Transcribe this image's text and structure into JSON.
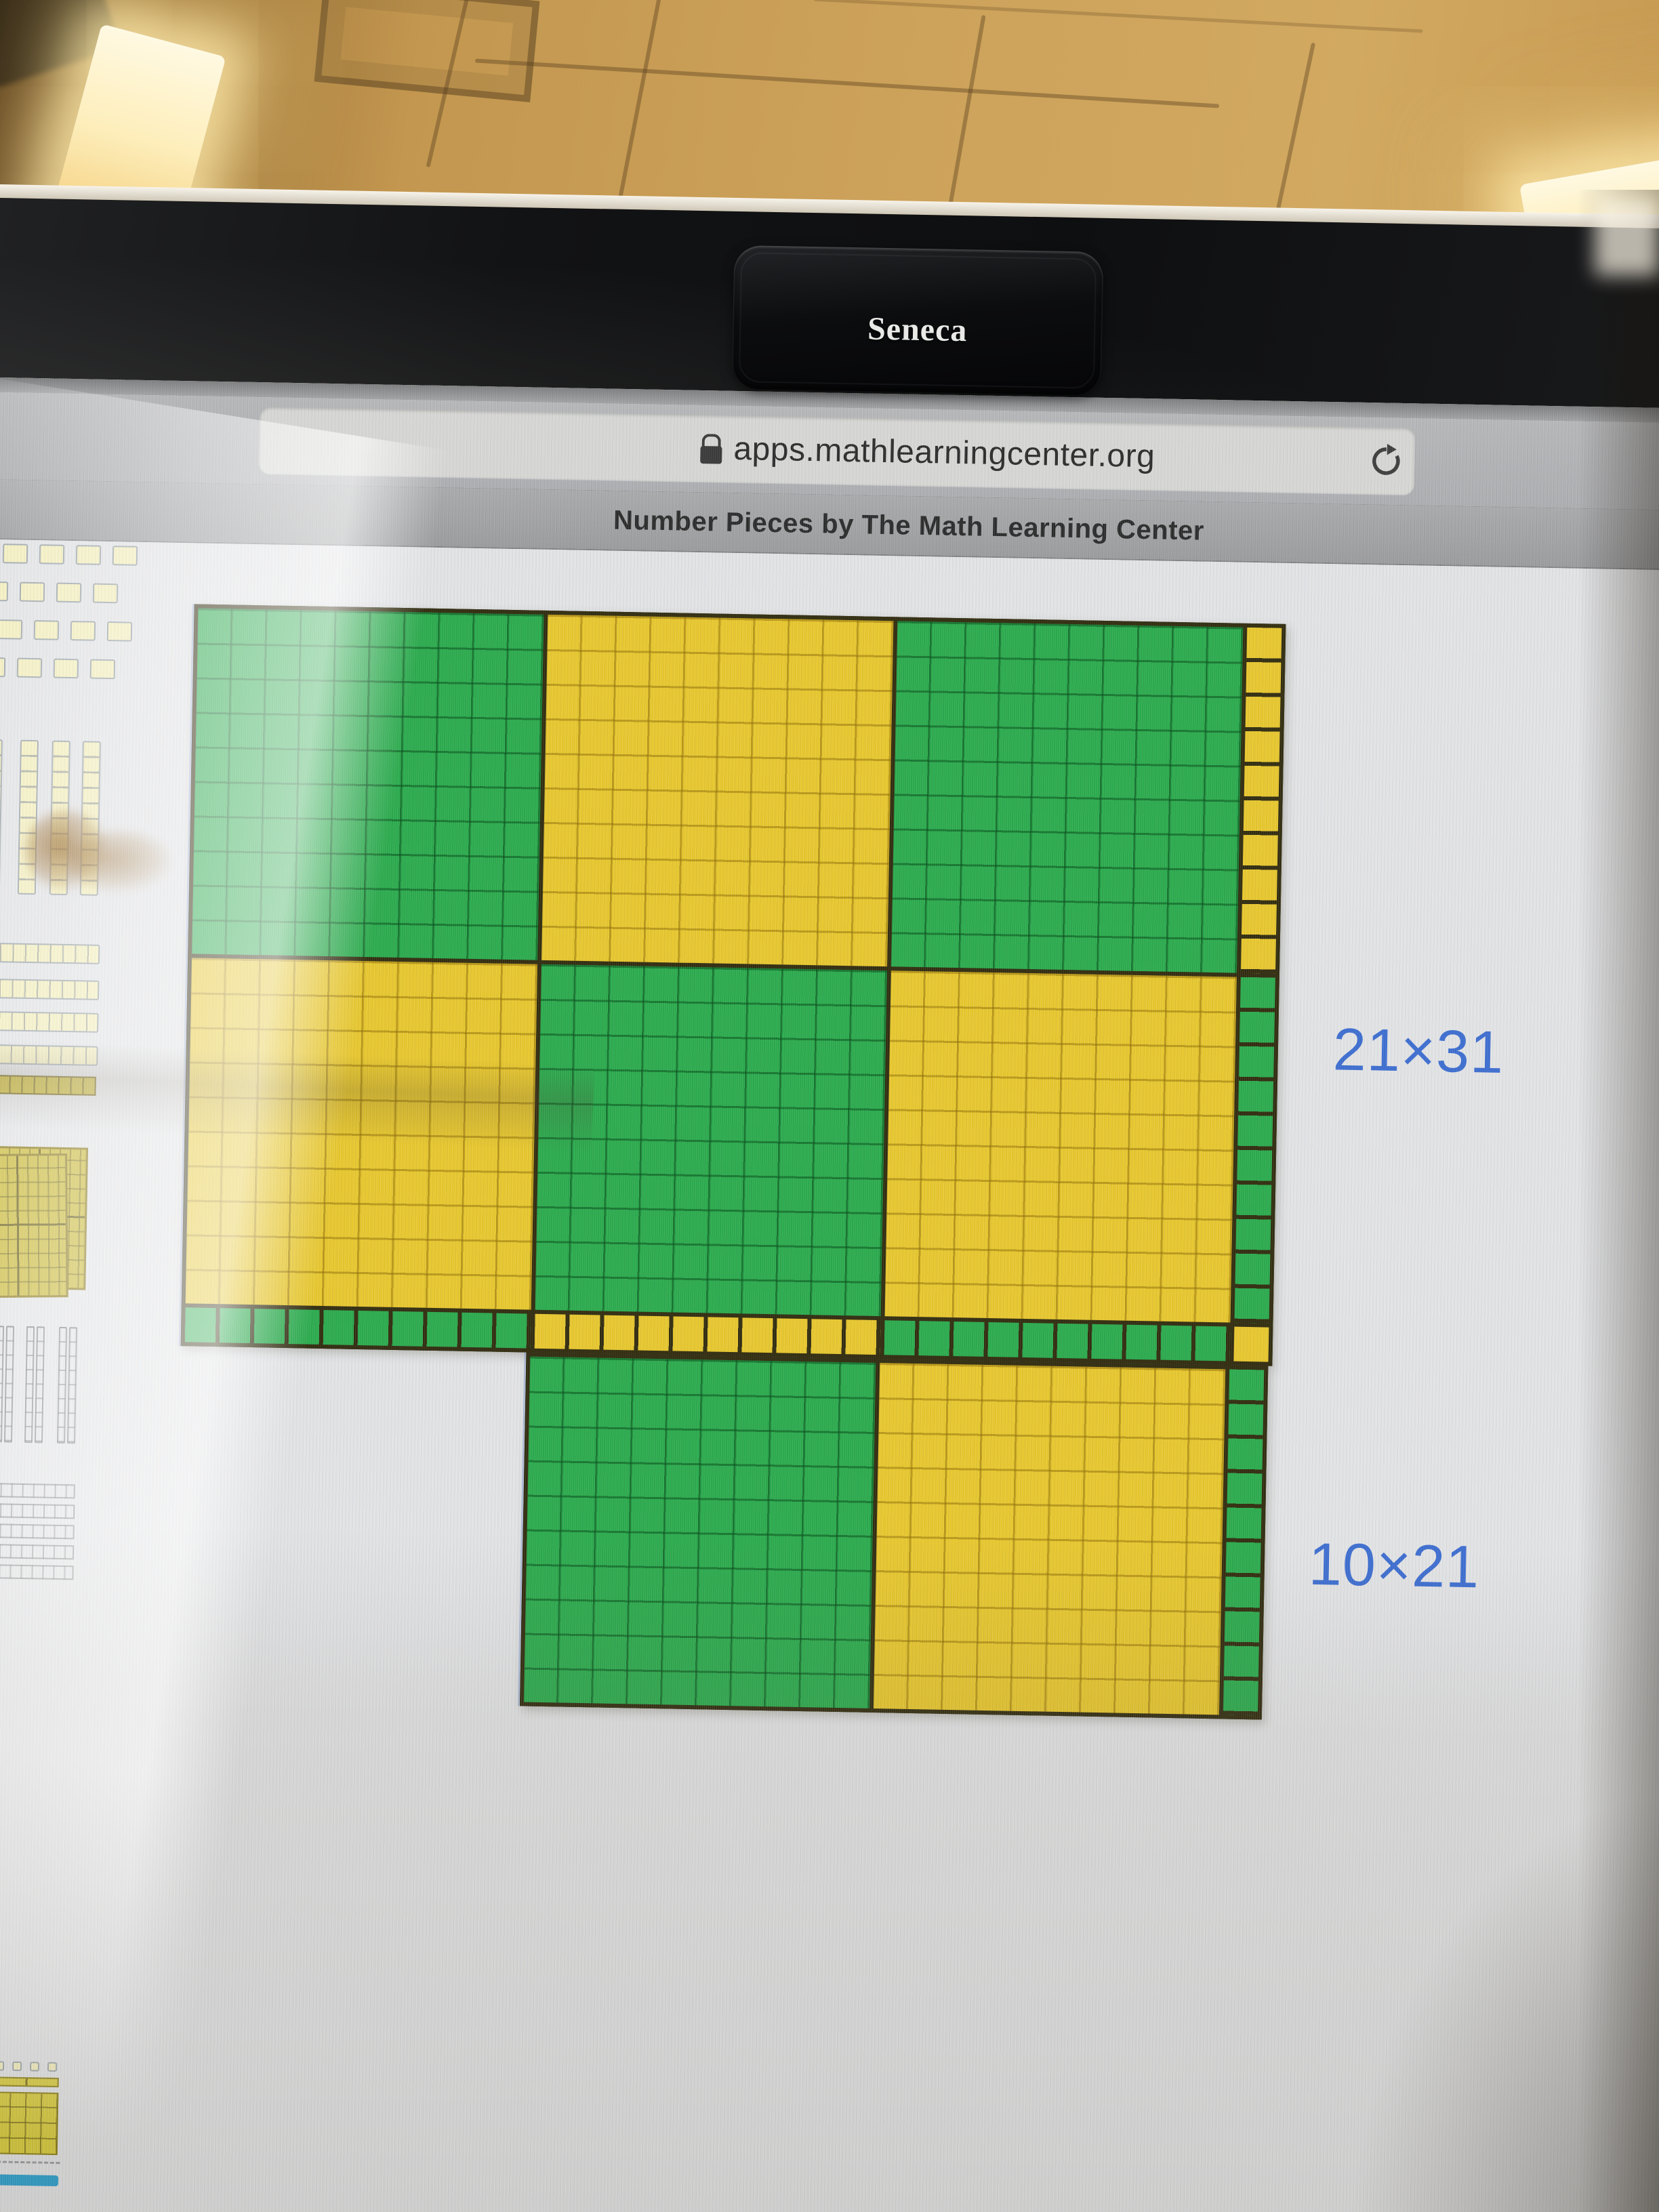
{
  "environment": {
    "webcam_cover_label": "Seneca"
  },
  "browser": {
    "address_bar": {
      "lock_icon": "padlock-icon",
      "url": "apps.mathlearningcenter.org",
      "reload_icon": "reload-icon"
    },
    "title_bar": {
      "title": "Number Pieces by The Math Learning Center"
    }
  },
  "app": {
    "canvas": {
      "arrangements": [
        {
          "label": "21×31",
          "grid": [
            [
              "hundred-green",
              "hundred-yellow",
              "hundred-green",
              "vstrip-yellow"
            ],
            [
              "hundred-yellow",
              "hundred-green",
              "hundred-yellow",
              "vstrip-green"
            ],
            [
              "hstrip-green",
              "hstrip-yellow",
              "hstrip-green",
              "unit-yellow"
            ]
          ]
        },
        {
          "label": "10×21",
          "grid": [
            [
              "hundred-green",
              "hundred-yellow",
              "vstrip-green"
            ]
          ]
        }
      ]
    },
    "tray": {
      "piece_groups": [
        "ones-units",
        "tens-rods",
        "tens-strips",
        "hundreds-mats",
        "outline-rods",
        "outline-strips"
      ],
      "drawer_button": "pieces-drawer"
    },
    "colors": {
      "green_piece": "#2cab4e",
      "yellow_piece": "#e7c72f",
      "piece_border": "#322d10",
      "label_blue": "#3e6ed0",
      "tray_piece_fill": "#f3eebc",
      "drawer_indicator_blue": "#2a9fce"
    }
  }
}
